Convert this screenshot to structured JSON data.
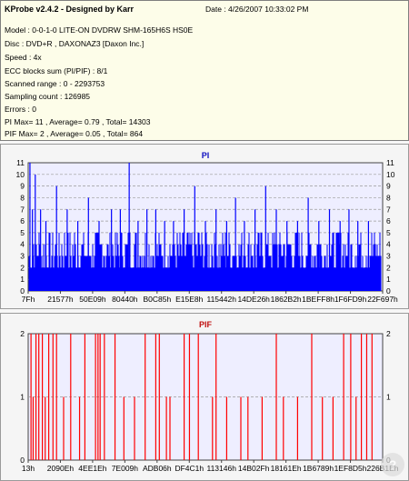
{
  "info": {
    "title": "KProbe v2.4.2 - Designed by Karr",
    "date": "Date : 4/26/2007 10:33:02 PM",
    "lines": [
      "Model : 0-0-1-0 LITE-ON DVDRW SHM-165H6S HS0E",
      "Disc : DVD+R , DAXONAZ3 [Daxon Inc.]",
      "Speed : 4x",
      "ECC blocks sum (PI/PIF) : 8/1",
      "Scanned range : 0 - 2293753",
      "Sampling count : 126985",
      "Errors : 0",
      "PI Max= 11 , Average= 0.79 , Total= 14303",
      "PIF Max= 2 , Average= 0.05 , Total= 864"
    ]
  },
  "colors": {
    "pi": "#0000ff",
    "pif": "#ff0000",
    "grid": "#9a9a9a",
    "plot_bg": "#eeeeff"
  },
  "chart_data": [
    {
      "type": "bar",
      "title": "PI",
      "ylim": [
        0,
        11
      ],
      "yticks": [
        0,
        1,
        2,
        3,
        4,
        5,
        6,
        7,
        8,
        9,
        10,
        11
      ],
      "xtick_labels": [
        "7Fh",
        "21577h",
        "50E09h",
        "80440h",
        "B0C85h",
        "E15E8h",
        "115442h",
        "14DE26h",
        "1862B2h",
        "1BEFF8h",
        "1F6FD9h",
        "22F697h"
      ],
      "grid": true,
      "baseline_range": [
        2,
        5
      ],
      "spikes": [
        {
          "x": 0.005,
          "y": 11
        },
        {
          "x": 0.012,
          "y": 7
        },
        {
          "x": 0.02,
          "y": 10
        },
        {
          "x": 0.035,
          "y": 7
        },
        {
          "x": 0.05,
          "y": 6
        },
        {
          "x": 0.08,
          "y": 9
        },
        {
          "x": 0.11,
          "y": 7
        },
        {
          "x": 0.14,
          "y": 6
        },
        {
          "x": 0.17,
          "y": 8
        },
        {
          "x": 0.2,
          "y": 6
        },
        {
          "x": 0.235,
          "y": 7
        },
        {
          "x": 0.26,
          "y": 7
        },
        {
          "x": 0.285,
          "y": 11
        },
        {
          "x": 0.31,
          "y": 6
        },
        {
          "x": 0.335,
          "y": 7
        },
        {
          "x": 0.36,
          "y": 7
        },
        {
          "x": 0.385,
          "y": 6
        },
        {
          "x": 0.41,
          "y": 6
        },
        {
          "x": 0.44,
          "y": 7
        },
        {
          "x": 0.47,
          "y": 9
        },
        {
          "x": 0.5,
          "y": 6
        },
        {
          "x": 0.53,
          "y": 7
        },
        {
          "x": 0.56,
          "y": 6
        },
        {
          "x": 0.585,
          "y": 8
        },
        {
          "x": 0.61,
          "y": 6
        },
        {
          "x": 0.64,
          "y": 7
        },
        {
          "x": 0.67,
          "y": 9
        },
        {
          "x": 0.7,
          "y": 7
        },
        {
          "x": 0.73,
          "y": 6
        },
        {
          "x": 0.76,
          "y": 6
        },
        {
          "x": 0.79,
          "y": 8
        },
        {
          "x": 0.82,
          "y": 6
        },
        {
          "x": 0.85,
          "y": 7
        },
        {
          "x": 0.88,
          "y": 6
        },
        {
          "x": 0.905,
          "y": 7
        },
        {
          "x": 0.93,
          "y": 6
        },
        {
          "x": 0.96,
          "y": 6
        }
      ]
    },
    {
      "type": "bar",
      "title": "PIF",
      "ylim": [
        0,
        2
      ],
      "yticks": [
        0,
        1,
        2
      ],
      "xtick_labels": [
        "13h",
        "2090Eh",
        "4EE1Eh",
        "7E009h",
        "ADB06h",
        "DF4C1h",
        "113146h",
        "14B02Fh",
        "18161Eh",
        "1B6789h",
        "1EF8D5h",
        "226B1Eh"
      ],
      "grid": true,
      "spikes": [
        {
          "x": 0.008,
          "y": 2
        },
        {
          "x": 0.014,
          "y": 1
        },
        {
          "x": 0.022,
          "y": 2
        },
        {
          "x": 0.03,
          "y": 2
        },
        {
          "x": 0.04,
          "y": 2
        },
        {
          "x": 0.048,
          "y": 1
        },
        {
          "x": 0.058,
          "y": 2
        },
        {
          "x": 0.07,
          "y": 2
        },
        {
          "x": 0.08,
          "y": 2
        },
        {
          "x": 0.1,
          "y": 1
        },
        {
          "x": 0.12,
          "y": 2
        },
        {
          "x": 0.145,
          "y": 1
        },
        {
          "x": 0.16,
          "y": 2
        },
        {
          "x": 0.19,
          "y": 2
        },
        {
          "x": 0.197,
          "y": 2
        },
        {
          "x": 0.203,
          "y": 2
        },
        {
          "x": 0.215,
          "y": 2
        },
        {
          "x": 0.245,
          "y": 2
        },
        {
          "x": 0.27,
          "y": 1
        },
        {
          "x": 0.3,
          "y": 1
        },
        {
          "x": 0.33,
          "y": 2
        },
        {
          "x": 0.36,
          "y": 2
        },
        {
          "x": 0.37,
          "y": 2
        },
        {
          "x": 0.39,
          "y": 1
        },
        {
          "x": 0.4,
          "y": 1
        },
        {
          "x": 0.44,
          "y": 2
        },
        {
          "x": 0.455,
          "y": 2
        },
        {
          "x": 0.48,
          "y": 2
        },
        {
          "x": 0.52,
          "y": 1
        },
        {
          "x": 0.53,
          "y": 2
        },
        {
          "x": 0.56,
          "y": 1
        },
        {
          "x": 0.6,
          "y": 1
        },
        {
          "x": 0.62,
          "y": 1
        },
        {
          "x": 0.66,
          "y": 1
        },
        {
          "x": 0.7,
          "y": 2
        },
        {
          "x": 0.72,
          "y": 1
        },
        {
          "x": 0.76,
          "y": 1
        },
        {
          "x": 0.8,
          "y": 2
        },
        {
          "x": 0.83,
          "y": 1
        },
        {
          "x": 0.86,
          "y": 1
        },
        {
          "x": 0.89,
          "y": 2
        },
        {
          "x": 0.91,
          "y": 2
        },
        {
          "x": 0.925,
          "y": 1
        },
        {
          "x": 0.94,
          "y": 2
        },
        {
          "x": 0.955,
          "y": 2
        },
        {
          "x": 0.97,
          "y": 2
        }
      ]
    }
  ]
}
